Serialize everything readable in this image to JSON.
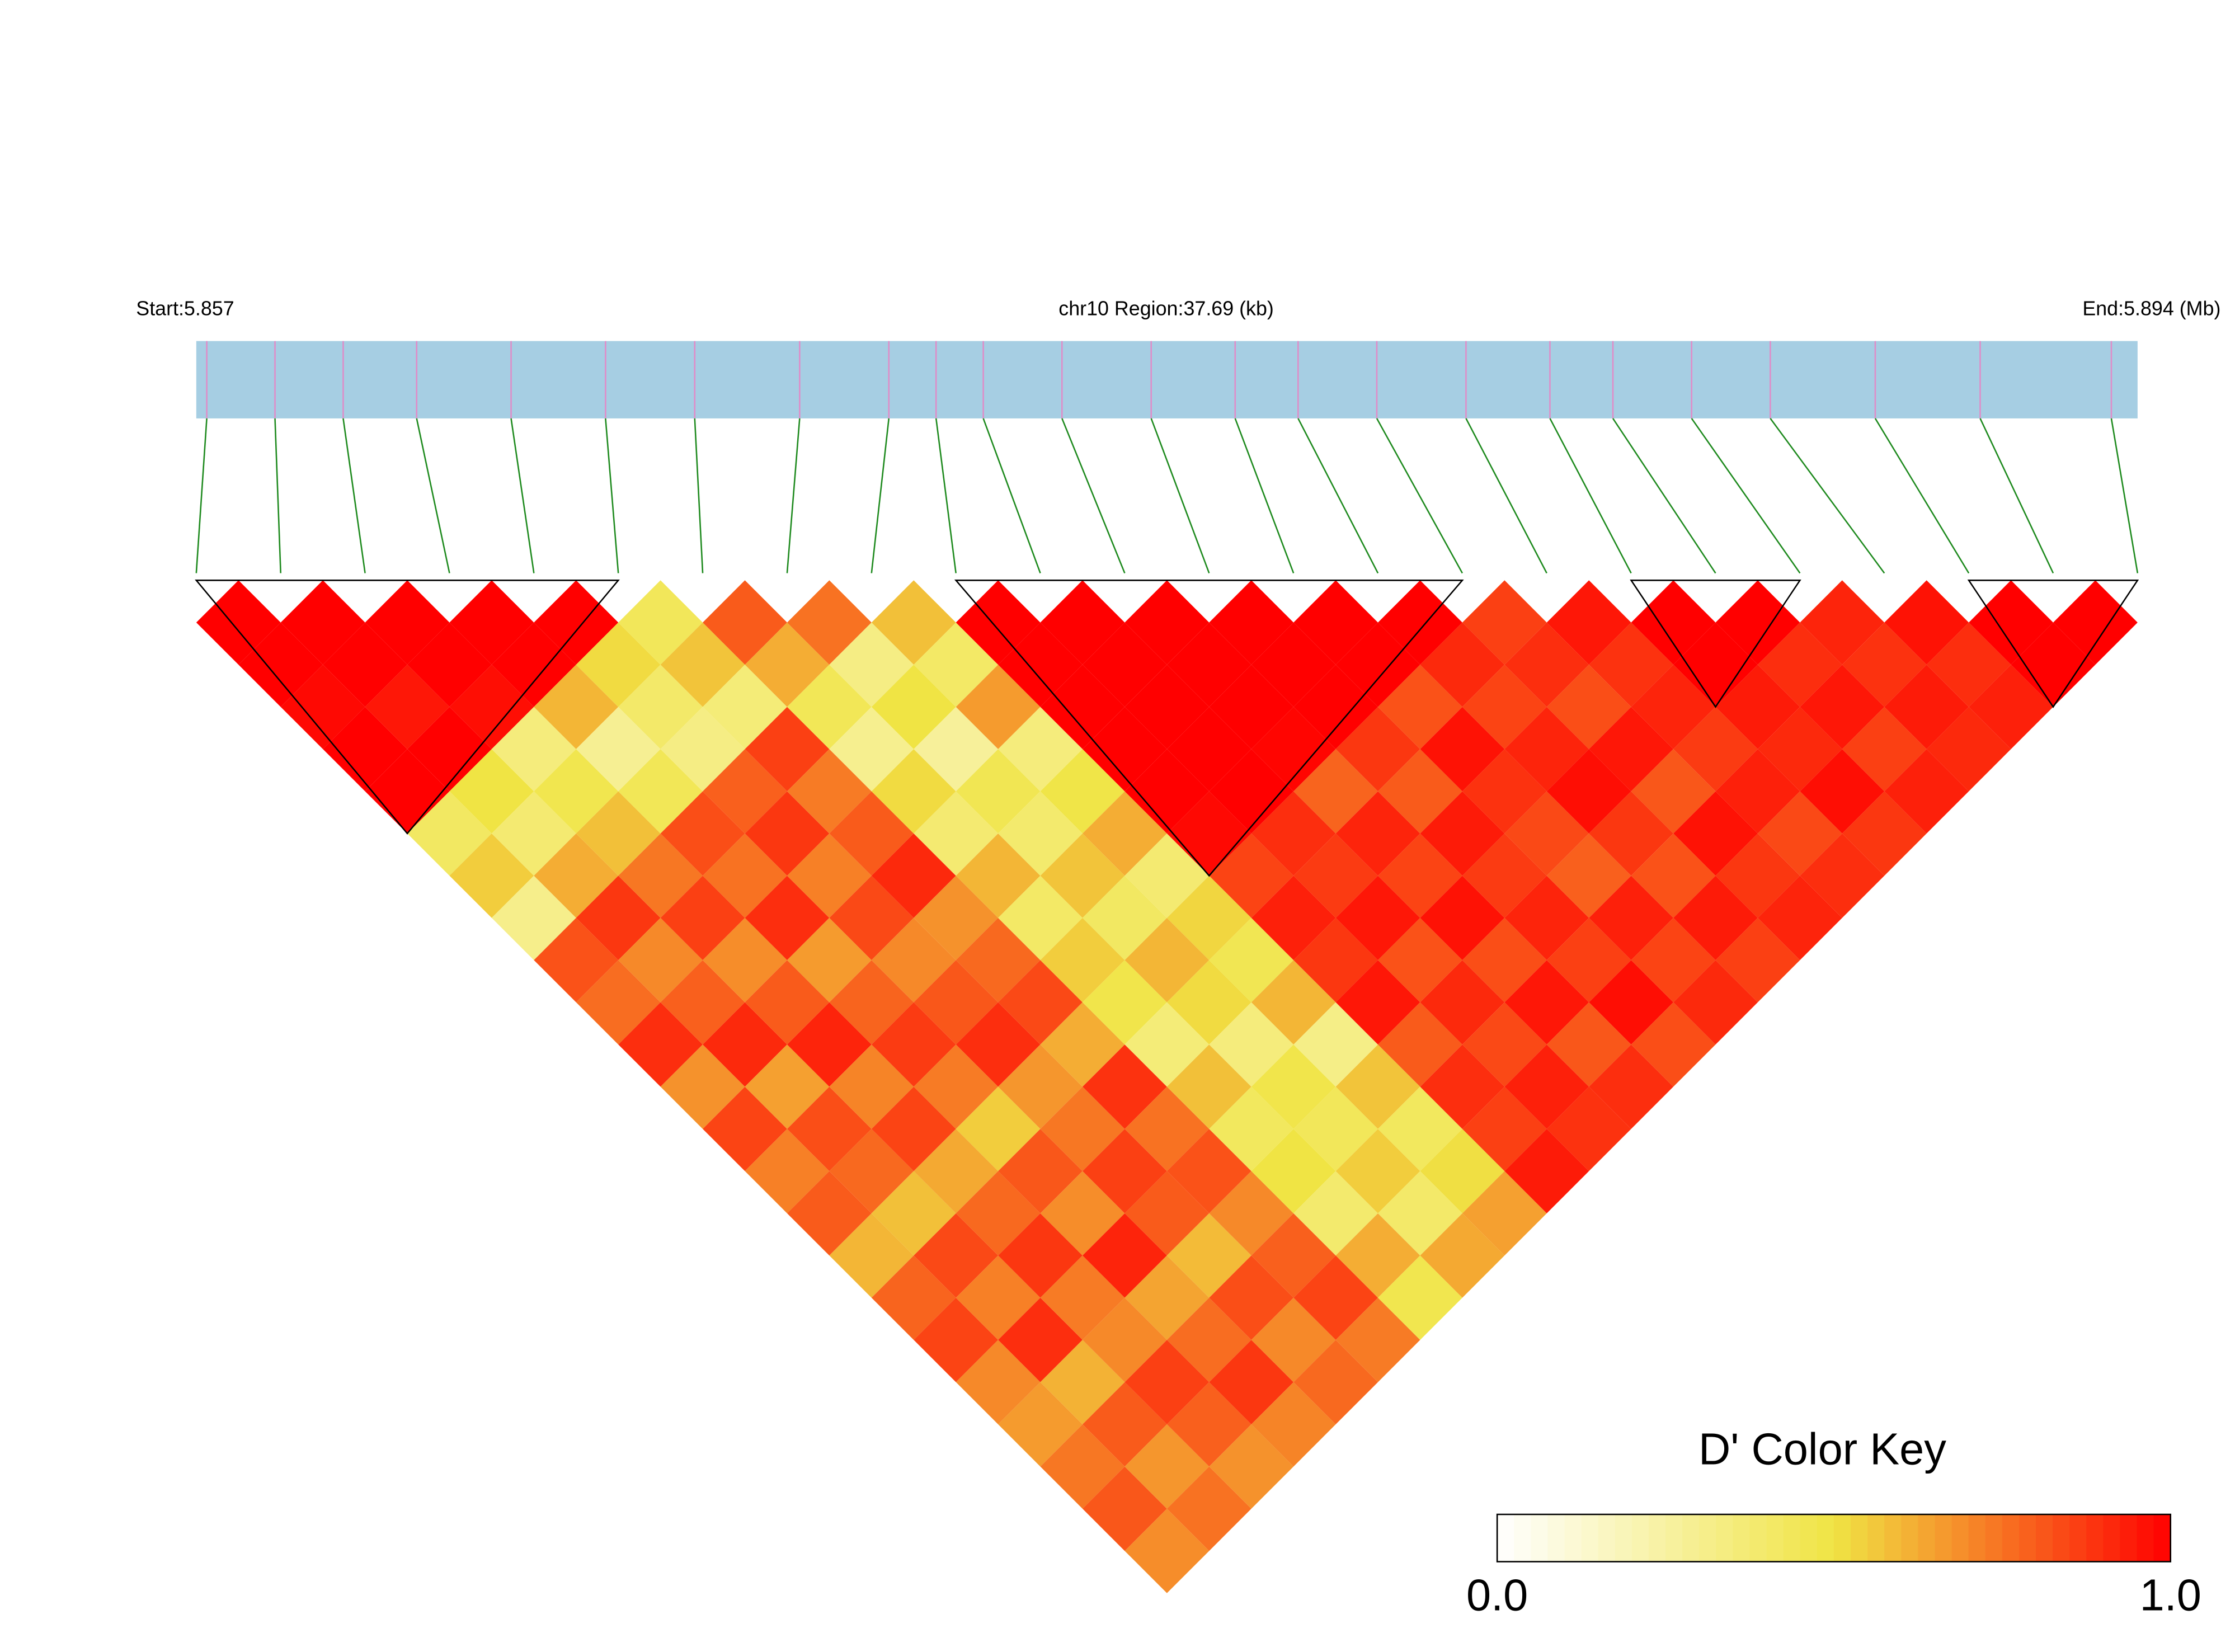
{
  "chart_data": {
    "type": "heatmap",
    "title": "chr10 Region:37.69 (kb)",
    "start_label": "Start:5.857",
    "end_label": "End:5.894 (Mb)",
    "xlim": [
      5.857,
      5.894
    ],
    "snp_positions": [
      5.8572,
      5.8585,
      5.8598,
      5.8612,
      5.863,
      5.8648,
      5.8665,
      5.8685,
      5.8702,
      5.8711,
      5.872,
      5.8735,
      5.8752,
      5.8768,
      5.878,
      5.8795,
      5.8812,
      5.8828,
      5.884,
      5.8855,
      5.887,
      5.889,
      5.891,
      5.8935
    ],
    "values": [
      [
        1,
        1,
        0.98,
        1,
        1,
        0.42,
        0.55,
        0.31,
        0.82,
        0.76,
        0.9,
        0.68,
        0.85,
        0.72,
        0.8,
        0.6,
        0.78,
        0.85,
        0.7,
        0.66,
        0.74,
        0.81,
        0.69
      ],
      [
        1,
        1,
        0.95,
        1,
        0.5,
        0.38,
        0.62,
        0.88,
        0.7,
        0.79,
        0.91,
        0.65,
        0.83,
        0.77,
        0.58,
        0.84,
        0.72,
        0.9,
        0.61,
        0.8,
        0.67,
        0.75
      ],
      [
        1,
        1,
        0.97,
        0.35,
        0.47,
        0.58,
        0.74,
        0.86,
        0.69,
        0.8,
        0.92,
        0.71,
        0.85,
        0.63,
        0.77,
        0.88,
        0.73,
        0.7,
        0.86,
        0.79,
        0.68
      ],
      [
        1,
        1,
        0.6,
        0.29,
        0.45,
        0.83,
        0.75,
        0.9,
        0.66,
        0.78,
        0.87,
        0.73,
        0.55,
        0.81,
        0.69,
        0.92,
        0.64,
        0.76,
        0.88,
        0.71
      ],
      [
        1,
        0.52,
        0.4,
        0.33,
        0.79,
        0.88,
        0.72,
        0.84,
        0.7,
        0.81,
        0.9,
        0.67,
        0.74,
        0.86,
        0.8,
        0.59,
        0.83,
        0.7,
        0.77
      ],
      [
        0.44,
        0.57,
        0.36,
        0.86,
        0.73,
        0.8,
        0.91,
        0.68,
        0.77,
        0.84,
        0.62,
        0.89,
        0.75,
        0.82,
        0.7,
        0.79,
        0.85,
        0.73
      ],
      [
        0.8,
        0.62,
        0.45,
        0.3,
        0.52,
        0.38,
        0.6,
        0.41,
        0.55,
        0.48,
        0.36,
        0.58,
        0.43,
        0.5,
        0.39,
        0.62,
        0.47
      ],
      [
        0.75,
        0.33,
        0.5,
        0.27,
        0.46,
        0.39,
        0.57,
        0.42,
        0.6,
        0.52,
        0.35,
        0.48,
        0.44,
        0.55,
        0.4,
        0.63
      ],
      [
        0.58,
        0.41,
        0.66,
        0.35,
        0.49,
        0.62,
        0.38,
        0.53,
        0.46,
        0.6,
        0.32,
        0.57,
        0.43,
        0.51,
        0.65
      ],
      [
        1,
        1,
        1,
        1,
        1,
        0.98,
        0.85,
        0.93,
        0.88,
        0.95,
        0.8,
        0.9,
        0.86,
        0.94
      ],
      [
        1,
        1,
        1,
        1,
        1,
        0.9,
        0.87,
        0.95,
        0.82,
        0.91,
        0.84,
        0.93,
        0.89
      ],
      [
        1,
        1,
        1,
        0.99,
        0.78,
        0.92,
        0.85,
        0.96,
        0.83,
        0.95,
        0.81,
        0.9
      ],
      [
        1,
        1,
        1,
        0.88,
        0.8,
        0.94,
        0.87,
        0.92,
        0.86,
        0.97,
        0.83
      ],
      [
        1,
        1,
        0.82,
        0.96,
        0.89,
        0.84,
        0.79,
        0.93,
        0.85,
        0.91
      ],
      [
        1,
        0.91,
        0.85,
        0.92,
        0.97,
        0.88,
        0.82,
        0.94,
        0.86
      ],
      [
        0.86,
        0.9,
        0.83,
        0.95,
        0.81,
        0.96,
        0.88,
        0.92
      ],
      [
        0.95,
        0.89,
        0.92,
        0.87,
        0.93,
        0.84,
        0.9
      ],
      [
        1,
        1,
        0.94,
        0.91,
        0.97,
        0.88
      ],
      [
        1,
        0.9,
        0.95,
        0.86,
        0.93
      ],
      [
        0.92,
        0.89,
        0.94,
        0.91
      ],
      [
        0.96,
        0.9,
        0.93
      ],
      [
        1,
        1
      ],
      [
        1
      ]
    ],
    "blocks": [
      [
        0,
        5
      ],
      [
        9,
        15
      ],
      [
        17,
        19
      ],
      [
        21,
        23
      ]
    ],
    "bar_color": "#a6cee3",
    "snp_tick_color": "#e08cc8",
    "connector_color": "#1e8a1e",
    "block_outline_color": "#000000",
    "color_key": {
      "title": "D' Color Key",
      "colors": [
        "#ffffff",
        "#f0e444",
        "#ff0000"
      ],
      "lim": [
        0,
        1
      ],
      "ticks": [
        {
          "value": 0,
          "label": "0.0"
        },
        {
          "value": 1,
          "label": "1.0"
        }
      ]
    }
  }
}
